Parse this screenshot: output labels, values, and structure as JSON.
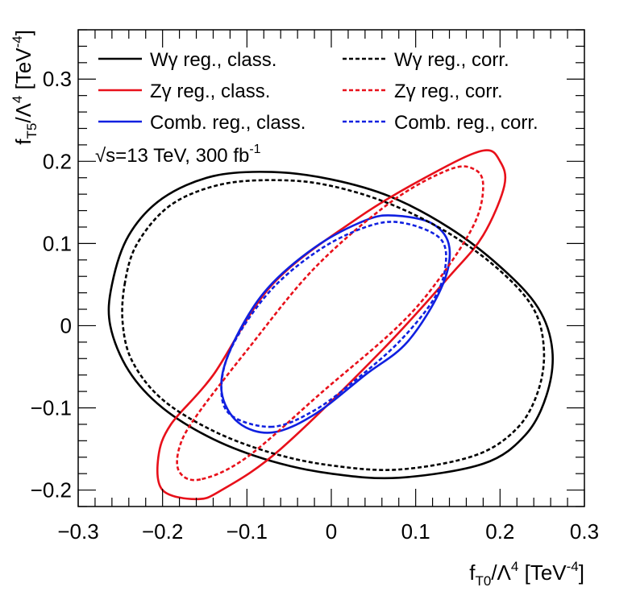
{
  "chart_data": {
    "type": "line",
    "xlabel": {
      "main": "f",
      "sub": "T0",
      "mid": "/Λ",
      "sup1": "4",
      "unit": " [TeV",
      "sup2": "-4",
      "close": "]"
    },
    "ylabel": {
      "main": "f",
      "sub": "T5",
      "mid": "/Λ",
      "sup1": "4",
      "unit": " [TeV",
      "sup2": "-4",
      "close": "]"
    },
    "xlim": [
      -0.3,
      0.3
    ],
    "ylim": [
      -0.22,
      0.36
    ],
    "x_ticks": [
      -0.3,
      -0.2,
      -0.1,
      0,
      0.1,
      0.2,
      0.3
    ],
    "x_tick_labels": [
      "−0.3",
      "−0.2",
      "−0.1",
      "0",
      "0.1",
      "0.2",
      "0.3"
    ],
    "y_ticks": [
      -0.2,
      -0.1,
      0,
      0.1,
      0.2,
      0.3
    ],
    "y_tick_labels": [
      "−0.2",
      "−0.1",
      "0",
      "0.1",
      "0.2",
      "0.3"
    ],
    "annotation": {
      "sqrt": "√",
      "text": "s=13 TeV, 300 fb",
      "sup": "-1"
    },
    "colors": {
      "black": "#000000",
      "red": "#e8101a",
      "blue": "#1020e0"
    },
    "series": [
      {
        "name": "Wγ reg., class.",
        "color": "#000000",
        "dashed": false,
        "points": [
          [
            -0.26,
            0.05
          ],
          [
            -0.24,
            0.11
          ],
          [
            -0.2,
            0.155
          ],
          [
            -0.14,
            0.182
          ],
          [
            -0.07,
            0.187
          ],
          [
            0,
            0.178
          ],
          [
            0.07,
            0.157
          ],
          [
            0.14,
            0.119
          ],
          [
            0.2,
            0.072
          ],
          [
            0.245,
            0.022
          ],
          [
            0.262,
            -0.03
          ],
          [
            0.255,
            -0.085
          ],
          [
            0.23,
            -0.133
          ],
          [
            0.18,
            -0.168
          ],
          [
            0.08,
            -0.185
          ],
          [
            0,
            -0.18
          ],
          [
            -0.07,
            -0.165
          ],
          [
            -0.14,
            -0.138
          ],
          [
            -0.2,
            -0.1
          ],
          [
            -0.24,
            -0.055
          ],
          [
            -0.262,
            0
          ],
          [
            -0.26,
            0.05
          ]
        ]
      },
      {
        "name": "Zγ reg., class.",
        "color": "#e8101a",
        "dashed": false,
        "points": [
          [
            -0.16,
            -0.211
          ],
          [
            -0.2,
            -0.2
          ],
          [
            -0.205,
            -0.16
          ],
          [
            -0.19,
            -0.12
          ],
          [
            -0.14,
            -0.06
          ],
          [
            -0.07,
            0.05
          ],
          [
            0.03,
            0.13
          ],
          [
            0.12,
            0.185
          ],
          [
            0.18,
            0.213
          ],
          [
            0.2,
            0.2
          ],
          [
            0.205,
            0.17
          ],
          [
            0.18,
            0.11
          ],
          [
            0.14,
            0.06
          ],
          [
            0.06,
            -0.03
          ],
          [
            -0.06,
            -0.15
          ],
          [
            -0.13,
            -0.2
          ],
          [
            -0.16,
            -0.211
          ]
        ]
      },
      {
        "name": "Comb. reg., class.",
        "color": "#1020e0",
        "dashed": false,
        "points": [
          [
            -0.07,
            -0.13
          ],
          [
            -0.11,
            -0.118
          ],
          [
            -0.13,
            -0.08
          ],
          [
            -0.12,
            -0.03
          ],
          [
            -0.08,
            0.04
          ],
          [
            -0.02,
            0.095
          ],
          [
            0.04,
            0.128
          ],
          [
            0.075,
            0.134
          ],
          [
            0.12,
            0.124
          ],
          [
            0.14,
            0.095
          ],
          [
            0.13,
            0.045
          ],
          [
            0.09,
            -0.02
          ],
          [
            0.04,
            -0.06
          ],
          [
            -0.02,
            -0.108
          ],
          [
            -0.07,
            -0.13
          ]
        ]
      },
      {
        "name": "Wγ reg., corr.",
        "color": "#000000",
        "dashed": true,
        "points": [
          [
            -0.245,
            0.05
          ],
          [
            -0.23,
            0.1
          ],
          [
            -0.19,
            0.147
          ],
          [
            -0.13,
            0.172
          ],
          [
            -0.06,
            0.177
          ],
          [
            0,
            0.17
          ],
          [
            0.07,
            0.148
          ],
          [
            0.14,
            0.112
          ],
          [
            0.2,
            0.067
          ],
          [
            0.24,
            0.02
          ],
          [
            0.252,
            -0.03
          ],
          [
            0.245,
            -0.08
          ],
          [
            0.22,
            -0.125
          ],
          [
            0.17,
            -0.158
          ],
          [
            0.08,
            -0.175
          ],
          [
            0,
            -0.17
          ],
          [
            -0.07,
            -0.155
          ],
          [
            -0.14,
            -0.128
          ],
          [
            -0.2,
            -0.09
          ],
          [
            -0.235,
            -0.045
          ],
          [
            -0.247,
            0
          ],
          [
            -0.245,
            0.05
          ]
        ]
      },
      {
        "name": "Zγ reg., corr.",
        "color": "#e8101a",
        "dashed": true,
        "points": [
          [
            -0.155,
            -0.187
          ],
          [
            -0.18,
            -0.178
          ],
          [
            -0.18,
            -0.148
          ],
          [
            -0.16,
            -0.11
          ],
          [
            -0.1,
            -0.03
          ],
          [
            -0.02,
            0.07
          ],
          [
            0.07,
            0.15
          ],
          [
            0.14,
            0.19
          ],
          [
            0.17,
            0.19
          ],
          [
            0.18,
            0.17
          ],
          [
            0.17,
            0.125
          ],
          [
            0.13,
            0.06
          ],
          [
            0.08,
            0
          ],
          [
            -0.01,
            -0.08
          ],
          [
            -0.1,
            -0.16
          ],
          [
            -0.155,
            -0.187
          ]
        ]
      },
      {
        "name": "Comb. reg., corr.",
        "color": "#1020e0",
        "dashed": true,
        "points": [
          [
            -0.07,
            -0.123
          ],
          [
            -0.12,
            -0.108
          ],
          [
            -0.13,
            -0.07
          ],
          [
            -0.115,
            -0.02
          ],
          [
            -0.07,
            0.045
          ],
          [
            -0.01,
            0.095
          ],
          [
            0.05,
            0.123
          ],
          [
            0.09,
            0.124
          ],
          [
            0.13,
            0.105
          ],
          [
            0.135,
            0.07
          ],
          [
            0.12,
            0.03
          ],
          [
            0.08,
            -0.02
          ],
          [
            0.03,
            -0.065
          ],
          [
            -0.02,
            -0.103
          ],
          [
            -0.07,
            -0.123
          ]
        ]
      }
    ],
    "legend": {
      "position": "top-left",
      "items": [
        {
          "label": "Wγ reg., class.",
          "color": "#000000",
          "dashed": false
        },
        {
          "label": "Wγ reg., corr.",
          "color": "#000000",
          "dashed": true
        },
        {
          "label": "Zγ reg., class.",
          "color": "#e8101a",
          "dashed": false
        },
        {
          "label": "Zγ reg., corr.",
          "color": "#e8101a",
          "dashed": true
        },
        {
          "label": "Comb. reg., class.",
          "color": "#1020e0",
          "dashed": false
        },
        {
          "label": "Comb. reg., corr.",
          "color": "#1020e0",
          "dashed": true
        }
      ]
    }
  }
}
